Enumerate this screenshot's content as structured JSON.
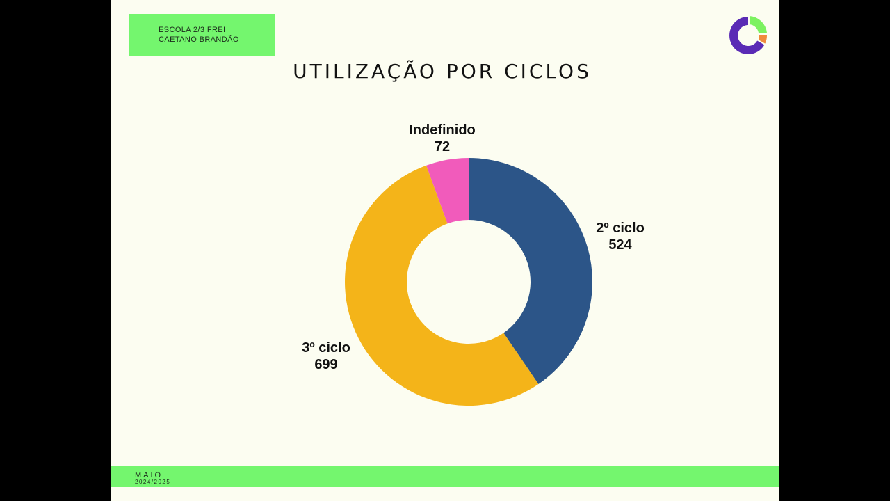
{
  "header": {
    "school_line1": "ESCOLA 2/3 FREI",
    "school_line2": "CAETANO BRANDÃO"
  },
  "logo": {
    "icon": "donut-chart-logo-icon",
    "colors": [
      "#5a2bb5",
      "#7cf260",
      "#f08a3c"
    ]
  },
  "footer": {
    "month": "MAIO",
    "year": "2024/2025"
  },
  "chart_data": {
    "type": "pie",
    "variant": "donut",
    "title": "UTILIZAÇÃO POR CICLOS",
    "categories": [
      "2º ciclo",
      "3º ciclo",
      "Indefinido"
    ],
    "values": [
      524,
      699,
      72
    ],
    "colors": [
      "#2c5588",
      "#f4b419",
      "#f15bbb"
    ],
    "start": "top",
    "direction": "clockwise",
    "legend": "none",
    "data_labels": "outside"
  }
}
